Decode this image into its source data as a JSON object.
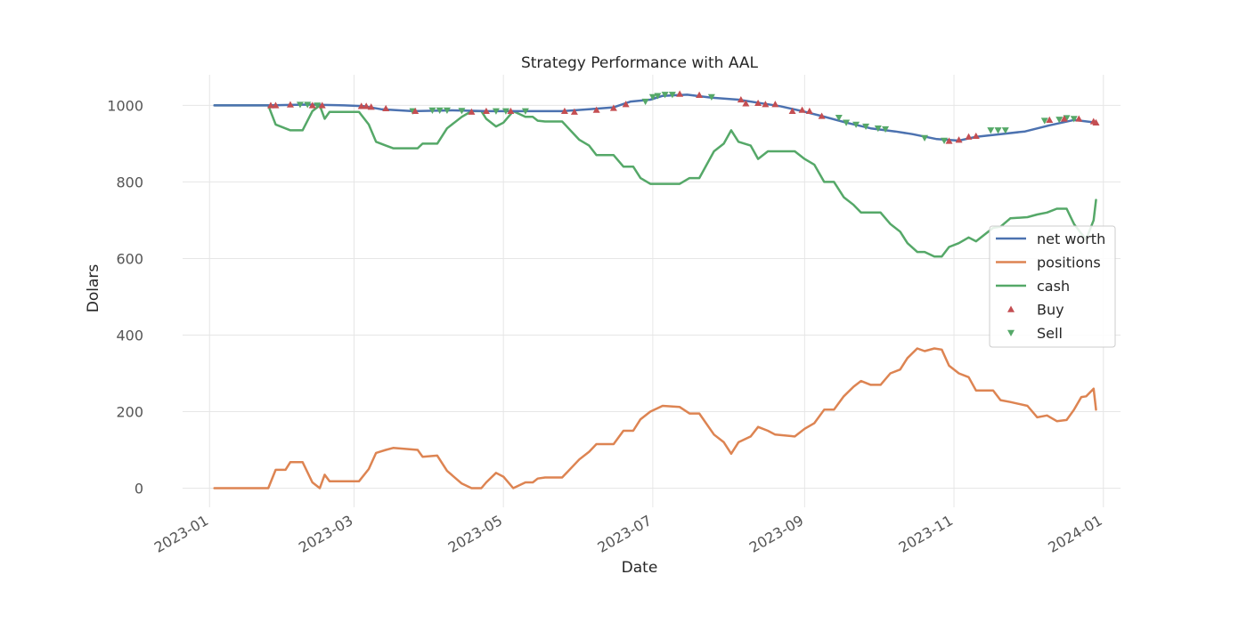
{
  "chart_data": {
    "type": "line",
    "title": "Strategy Performance with AAL",
    "xlabel": "Date",
    "ylabel": "Dolars",
    "xlim": [
      "2022-12-21",
      "2024-01-08"
    ],
    "ylim": [
      -50,
      1080
    ],
    "x_ticks": [
      "2023-01",
      "2023-03",
      "2023-05",
      "2023-07",
      "2023-09",
      "2023-11",
      "2024-01"
    ],
    "y_ticks": [
      0,
      200,
      400,
      600,
      800,
      1000
    ],
    "grid": true,
    "legend_position": "center-right",
    "colors": {
      "net worth": "#4c72b0",
      "positions": "#dd8452",
      "cash": "#55a868",
      "Buy": "#c44e52",
      "Sell": "#55a868"
    },
    "series": [
      {
        "name": "net worth",
        "points": [
          [
            "2023-01-03",
            1000
          ],
          [
            "2023-01-25",
            1000
          ],
          [
            "2023-02-10",
            1002
          ],
          [
            "2023-02-25",
            1000
          ],
          [
            "2023-03-05",
            998
          ],
          [
            "2023-03-12",
            990
          ],
          [
            "2023-03-25",
            985
          ],
          [
            "2023-04-10",
            987
          ],
          [
            "2023-04-25",
            985
          ],
          [
            "2023-05-10",
            985
          ],
          [
            "2023-05-25",
            985
          ],
          [
            "2023-06-05",
            990
          ],
          [
            "2023-06-15",
            995
          ],
          [
            "2023-06-22",
            1010
          ],
          [
            "2023-06-30",
            1015
          ],
          [
            "2023-07-05",
            1025
          ],
          [
            "2023-07-15",
            1028
          ],
          [
            "2023-07-25",
            1020
          ],
          [
            "2023-08-05",
            1015
          ],
          [
            "2023-08-15",
            1005
          ],
          [
            "2023-08-22",
            998
          ],
          [
            "2023-08-31",
            985
          ],
          [
            "2023-09-08",
            972
          ],
          [
            "2023-09-18",
            955
          ],
          [
            "2023-09-28",
            940
          ],
          [
            "2023-10-08",
            932
          ],
          [
            "2023-10-15",
            925
          ],
          [
            "2023-10-25",
            912
          ],
          [
            "2023-11-03",
            908
          ],
          [
            "2023-11-10",
            918
          ],
          [
            "2023-11-20",
            925
          ],
          [
            "2023-11-30",
            932
          ],
          [
            "2023-12-10",
            948
          ],
          [
            "2023-12-20",
            962
          ],
          [
            "2023-12-29",
            955
          ]
        ]
      },
      {
        "name": "positions",
        "points": [
          [
            "2023-01-03",
            0
          ],
          [
            "2023-01-25",
            0
          ],
          [
            "2023-01-28",
            48
          ],
          [
            "2023-02-01",
            48
          ],
          [
            "2023-02-03",
            68
          ],
          [
            "2023-02-08",
            68
          ],
          [
            "2023-02-12",
            15
          ],
          [
            "2023-02-15",
            0
          ],
          [
            "2023-02-17",
            35
          ],
          [
            "2023-02-19",
            18
          ],
          [
            "2023-03-03",
            18
          ],
          [
            "2023-03-07",
            50
          ],
          [
            "2023-03-10",
            92
          ],
          [
            "2023-03-14",
            100
          ],
          [
            "2023-03-17",
            105
          ],
          [
            "2023-03-27",
            100
          ],
          [
            "2023-03-29",
            82
          ],
          [
            "2023-04-04",
            85
          ],
          [
            "2023-04-08",
            45
          ],
          [
            "2023-04-14",
            12
          ],
          [
            "2023-04-18",
            0
          ],
          [
            "2023-04-22",
            0
          ],
          [
            "2023-04-24",
            15
          ],
          [
            "2023-04-28",
            40
          ],
          [
            "2023-05-01",
            30
          ],
          [
            "2023-05-05",
            0
          ],
          [
            "2023-05-10",
            15
          ],
          [
            "2023-05-13",
            15
          ],
          [
            "2023-05-15",
            25
          ],
          [
            "2023-05-18",
            28
          ],
          [
            "2023-05-25",
            28
          ],
          [
            "2023-06-01",
            75
          ],
          [
            "2023-06-05",
            95
          ],
          [
            "2023-06-08",
            115
          ],
          [
            "2023-06-15",
            115
          ],
          [
            "2023-06-19",
            150
          ],
          [
            "2023-06-23",
            150
          ],
          [
            "2023-06-26",
            180
          ],
          [
            "2023-06-30",
            200
          ],
          [
            "2023-07-05",
            215
          ],
          [
            "2023-07-12",
            212
          ],
          [
            "2023-07-16",
            195
          ],
          [
            "2023-07-20",
            195
          ],
          [
            "2023-07-26",
            140
          ],
          [
            "2023-07-30",
            120
          ],
          [
            "2023-08-02",
            90
          ],
          [
            "2023-08-05",
            120
          ],
          [
            "2023-08-10",
            135
          ],
          [
            "2023-08-13",
            160
          ],
          [
            "2023-08-17",
            150
          ],
          [
            "2023-08-20",
            140
          ],
          [
            "2023-08-28",
            135
          ],
          [
            "2023-09-01",
            155
          ],
          [
            "2023-09-05",
            170
          ],
          [
            "2023-09-09",
            205
          ],
          [
            "2023-09-13",
            205
          ],
          [
            "2023-09-17",
            240
          ],
          [
            "2023-09-21",
            265
          ],
          [
            "2023-09-24",
            280
          ],
          [
            "2023-09-28",
            270
          ],
          [
            "2023-10-02",
            270
          ],
          [
            "2023-10-06",
            300
          ],
          [
            "2023-10-10",
            310
          ],
          [
            "2023-10-13",
            340
          ],
          [
            "2023-10-17",
            365
          ],
          [
            "2023-10-20",
            358
          ],
          [
            "2023-10-24",
            365
          ],
          [
            "2023-10-27",
            362
          ],
          [
            "2023-10-30",
            320
          ],
          [
            "2023-11-03",
            300
          ],
          [
            "2023-11-07",
            290
          ],
          [
            "2023-11-10",
            255
          ],
          [
            "2023-11-17",
            255
          ],
          [
            "2023-11-20",
            230
          ],
          [
            "2023-11-24",
            225
          ],
          [
            "2023-12-01",
            215
          ],
          [
            "2023-12-05",
            185
          ],
          [
            "2023-12-09",
            190
          ],
          [
            "2023-12-13",
            175
          ],
          [
            "2023-12-17",
            178
          ],
          [
            "2023-12-20",
            205
          ],
          [
            "2023-12-23",
            238
          ],
          [
            "2023-12-25",
            240
          ],
          [
            "2023-12-28",
            260
          ],
          [
            "2023-12-29",
            205
          ]
        ]
      },
      {
        "name": "cash",
        "points": [
          [
            "2023-01-03",
            1000
          ],
          [
            "2023-01-25",
            1000
          ],
          [
            "2023-01-28",
            950
          ],
          [
            "2023-02-03",
            935
          ],
          [
            "2023-02-08",
            935
          ],
          [
            "2023-02-12",
            985
          ],
          [
            "2023-02-15",
            1000
          ],
          [
            "2023-02-17",
            965
          ],
          [
            "2023-02-19",
            983
          ],
          [
            "2023-03-03",
            983
          ],
          [
            "2023-03-07",
            950
          ],
          [
            "2023-03-10",
            905
          ],
          [
            "2023-03-14",
            895
          ],
          [
            "2023-03-17",
            888
          ],
          [
            "2023-03-27",
            888
          ],
          [
            "2023-03-29",
            900
          ],
          [
            "2023-04-04",
            900
          ],
          [
            "2023-04-08",
            940
          ],
          [
            "2023-04-14",
            970
          ],
          [
            "2023-04-18",
            985
          ],
          [
            "2023-04-22",
            985
          ],
          [
            "2023-04-24",
            965
          ],
          [
            "2023-04-28",
            945
          ],
          [
            "2023-05-01",
            955
          ],
          [
            "2023-05-05",
            985
          ],
          [
            "2023-05-10",
            970
          ],
          [
            "2023-05-13",
            970
          ],
          [
            "2023-05-15",
            960
          ],
          [
            "2023-05-18",
            958
          ],
          [
            "2023-05-25",
            958
          ],
          [
            "2023-06-01",
            910
          ],
          [
            "2023-06-05",
            895
          ],
          [
            "2023-06-08",
            870
          ],
          [
            "2023-06-15",
            870
          ],
          [
            "2023-06-19",
            840
          ],
          [
            "2023-06-23",
            840
          ],
          [
            "2023-06-26",
            810
          ],
          [
            "2023-06-30",
            795
          ],
          [
            "2023-07-05",
            795
          ],
          [
            "2023-07-12",
            795
          ],
          [
            "2023-07-16",
            810
          ],
          [
            "2023-07-20",
            810
          ],
          [
            "2023-07-26",
            880
          ],
          [
            "2023-07-30",
            900
          ],
          [
            "2023-08-02",
            935
          ],
          [
            "2023-08-05",
            905
          ],
          [
            "2023-08-10",
            895
          ],
          [
            "2023-08-13",
            860
          ],
          [
            "2023-08-17",
            880
          ],
          [
            "2023-08-20",
            880
          ],
          [
            "2023-08-28",
            880
          ],
          [
            "2023-09-01",
            860
          ],
          [
            "2023-09-05",
            845
          ],
          [
            "2023-09-09",
            800
          ],
          [
            "2023-09-13",
            800
          ],
          [
            "2023-09-17",
            760
          ],
          [
            "2023-09-21",
            740
          ],
          [
            "2023-09-24",
            720
          ],
          [
            "2023-10-02",
            720
          ],
          [
            "2023-10-06",
            690
          ],
          [
            "2023-10-10",
            670
          ],
          [
            "2023-10-13",
            640
          ],
          [
            "2023-10-17",
            617
          ],
          [
            "2023-10-20",
            617
          ],
          [
            "2023-10-24",
            605
          ],
          [
            "2023-10-27",
            605
          ],
          [
            "2023-10-30",
            630
          ],
          [
            "2023-11-03",
            640
          ],
          [
            "2023-11-07",
            655
          ],
          [
            "2023-11-10",
            645
          ],
          [
            "2023-11-17",
            680
          ],
          [
            "2023-11-20",
            683
          ],
          [
            "2023-11-24",
            705
          ],
          [
            "2023-12-01",
            708
          ],
          [
            "2023-12-05",
            715
          ],
          [
            "2023-12-09",
            720
          ],
          [
            "2023-12-13",
            730
          ],
          [
            "2023-12-17",
            730
          ],
          [
            "2023-12-20",
            690
          ],
          [
            "2023-12-23",
            665
          ],
          [
            "2023-12-25",
            650
          ],
          [
            "2023-12-28",
            700
          ],
          [
            "2023-12-29",
            753
          ]
        ]
      }
    ],
    "buy_markers": [
      [
        "2023-01-26",
        1000
      ],
      [
        "2023-01-28",
        1000
      ],
      [
        "2023-02-03",
        1002
      ],
      [
        "2023-02-12",
        1000
      ],
      [
        "2023-02-16",
        1000
      ],
      [
        "2023-03-04",
        998
      ],
      [
        "2023-03-06",
        998
      ],
      [
        "2023-03-08",
        996
      ],
      [
        "2023-03-14",
        992
      ],
      [
        "2023-03-26",
        985
      ],
      [
        "2023-04-18",
        983
      ],
      [
        "2023-04-24",
        985
      ],
      [
        "2023-05-04",
        985
      ],
      [
        "2023-05-26",
        985
      ],
      [
        "2023-05-30",
        983
      ],
      [
        "2023-06-08",
        988
      ],
      [
        "2023-06-15",
        993
      ],
      [
        "2023-06-20",
        1003
      ],
      [
        "2023-07-12",
        1030
      ],
      [
        "2023-07-20",
        1027
      ],
      [
        "2023-08-06",
        1015
      ],
      [
        "2023-08-08",
        1005
      ],
      [
        "2023-08-13",
        1006
      ],
      [
        "2023-08-16",
        1003
      ],
      [
        "2023-08-20",
        1003
      ],
      [
        "2023-08-27",
        985
      ],
      [
        "2023-08-31",
        988
      ],
      [
        "2023-09-03",
        985
      ],
      [
        "2023-09-08",
        972
      ],
      [
        "2023-10-30",
        907
      ],
      [
        "2023-11-03",
        910
      ],
      [
        "2023-11-07",
        918
      ],
      [
        "2023-11-10",
        920
      ],
      [
        "2023-12-10",
        962
      ],
      [
        "2023-12-16",
        965
      ],
      [
        "2023-12-22",
        965
      ],
      [
        "2023-12-28",
        958
      ],
      [
        "2023-12-29",
        955
      ]
    ],
    "sell_markers": [
      [
        "2023-02-07",
        1002
      ],
      [
        "2023-02-10",
        1002
      ],
      [
        "2023-02-14",
        1000
      ],
      [
        "2023-03-25",
        985
      ],
      [
        "2023-04-02",
        987
      ],
      [
        "2023-04-05",
        987
      ],
      [
        "2023-04-08",
        987
      ],
      [
        "2023-04-14",
        986
      ],
      [
        "2023-04-28",
        985
      ],
      [
        "2023-05-02",
        985
      ],
      [
        "2023-05-10",
        985
      ],
      [
        "2023-06-28",
        1010
      ],
      [
        "2023-07-01",
        1022
      ],
      [
        "2023-07-03",
        1025
      ],
      [
        "2023-07-06",
        1028
      ],
      [
        "2023-07-09",
        1028
      ],
      [
        "2023-07-25",
        1022
      ],
      [
        "2023-09-15",
        968
      ],
      [
        "2023-09-18",
        955
      ],
      [
        "2023-09-22",
        950
      ],
      [
        "2023-09-26",
        945
      ],
      [
        "2023-10-01",
        940
      ],
      [
        "2023-10-04",
        938
      ],
      [
        "2023-10-20",
        915
      ],
      [
        "2023-10-28",
        908
      ],
      [
        "2023-11-16",
        935
      ],
      [
        "2023-11-19",
        935
      ],
      [
        "2023-11-22",
        935
      ],
      [
        "2023-12-08",
        960
      ],
      [
        "2023-12-14",
        963
      ],
      [
        "2023-12-17",
        967
      ],
      [
        "2023-12-20",
        965
      ]
    ]
  }
}
